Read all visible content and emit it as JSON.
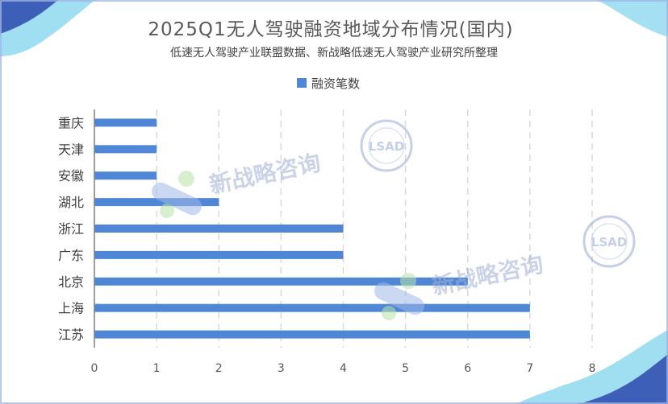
{
  "watermark": {
    "text": "新战略咨询",
    "logo_text": "LSAD"
  },
  "colors": {
    "bar": "#4f87d6",
    "title": "#595959",
    "axis": "#7f7f7f",
    "grid": "#d9d9d9",
    "wave_dark": "#3e5fb8",
    "wave_light": "#7fd3ee"
  },
  "chart_data": {
    "type": "bar",
    "orientation": "horizontal",
    "title": "2025Q1无人驾驶融资地域分布情况(国内)",
    "subtitle": "低速无人驾驶产业联盟数据、新战略低速无人驾驶产业研究所整理",
    "categories": [
      "重庆",
      "天津",
      "安徽",
      "湖北",
      "浙江",
      "广东",
      "北京",
      "上海",
      "江苏"
    ],
    "series": [
      {
        "name": "融资笔数",
        "values": [
          1,
          1,
          1,
          2,
          4,
          4,
          6,
          7,
          7
        ]
      }
    ],
    "xlim": [
      0,
      8
    ],
    "xticks": [
      "0",
      "1",
      "2",
      "3",
      "4",
      "5",
      "6",
      "7",
      "8"
    ],
    "grid": true,
    "legend": "top-center"
  }
}
